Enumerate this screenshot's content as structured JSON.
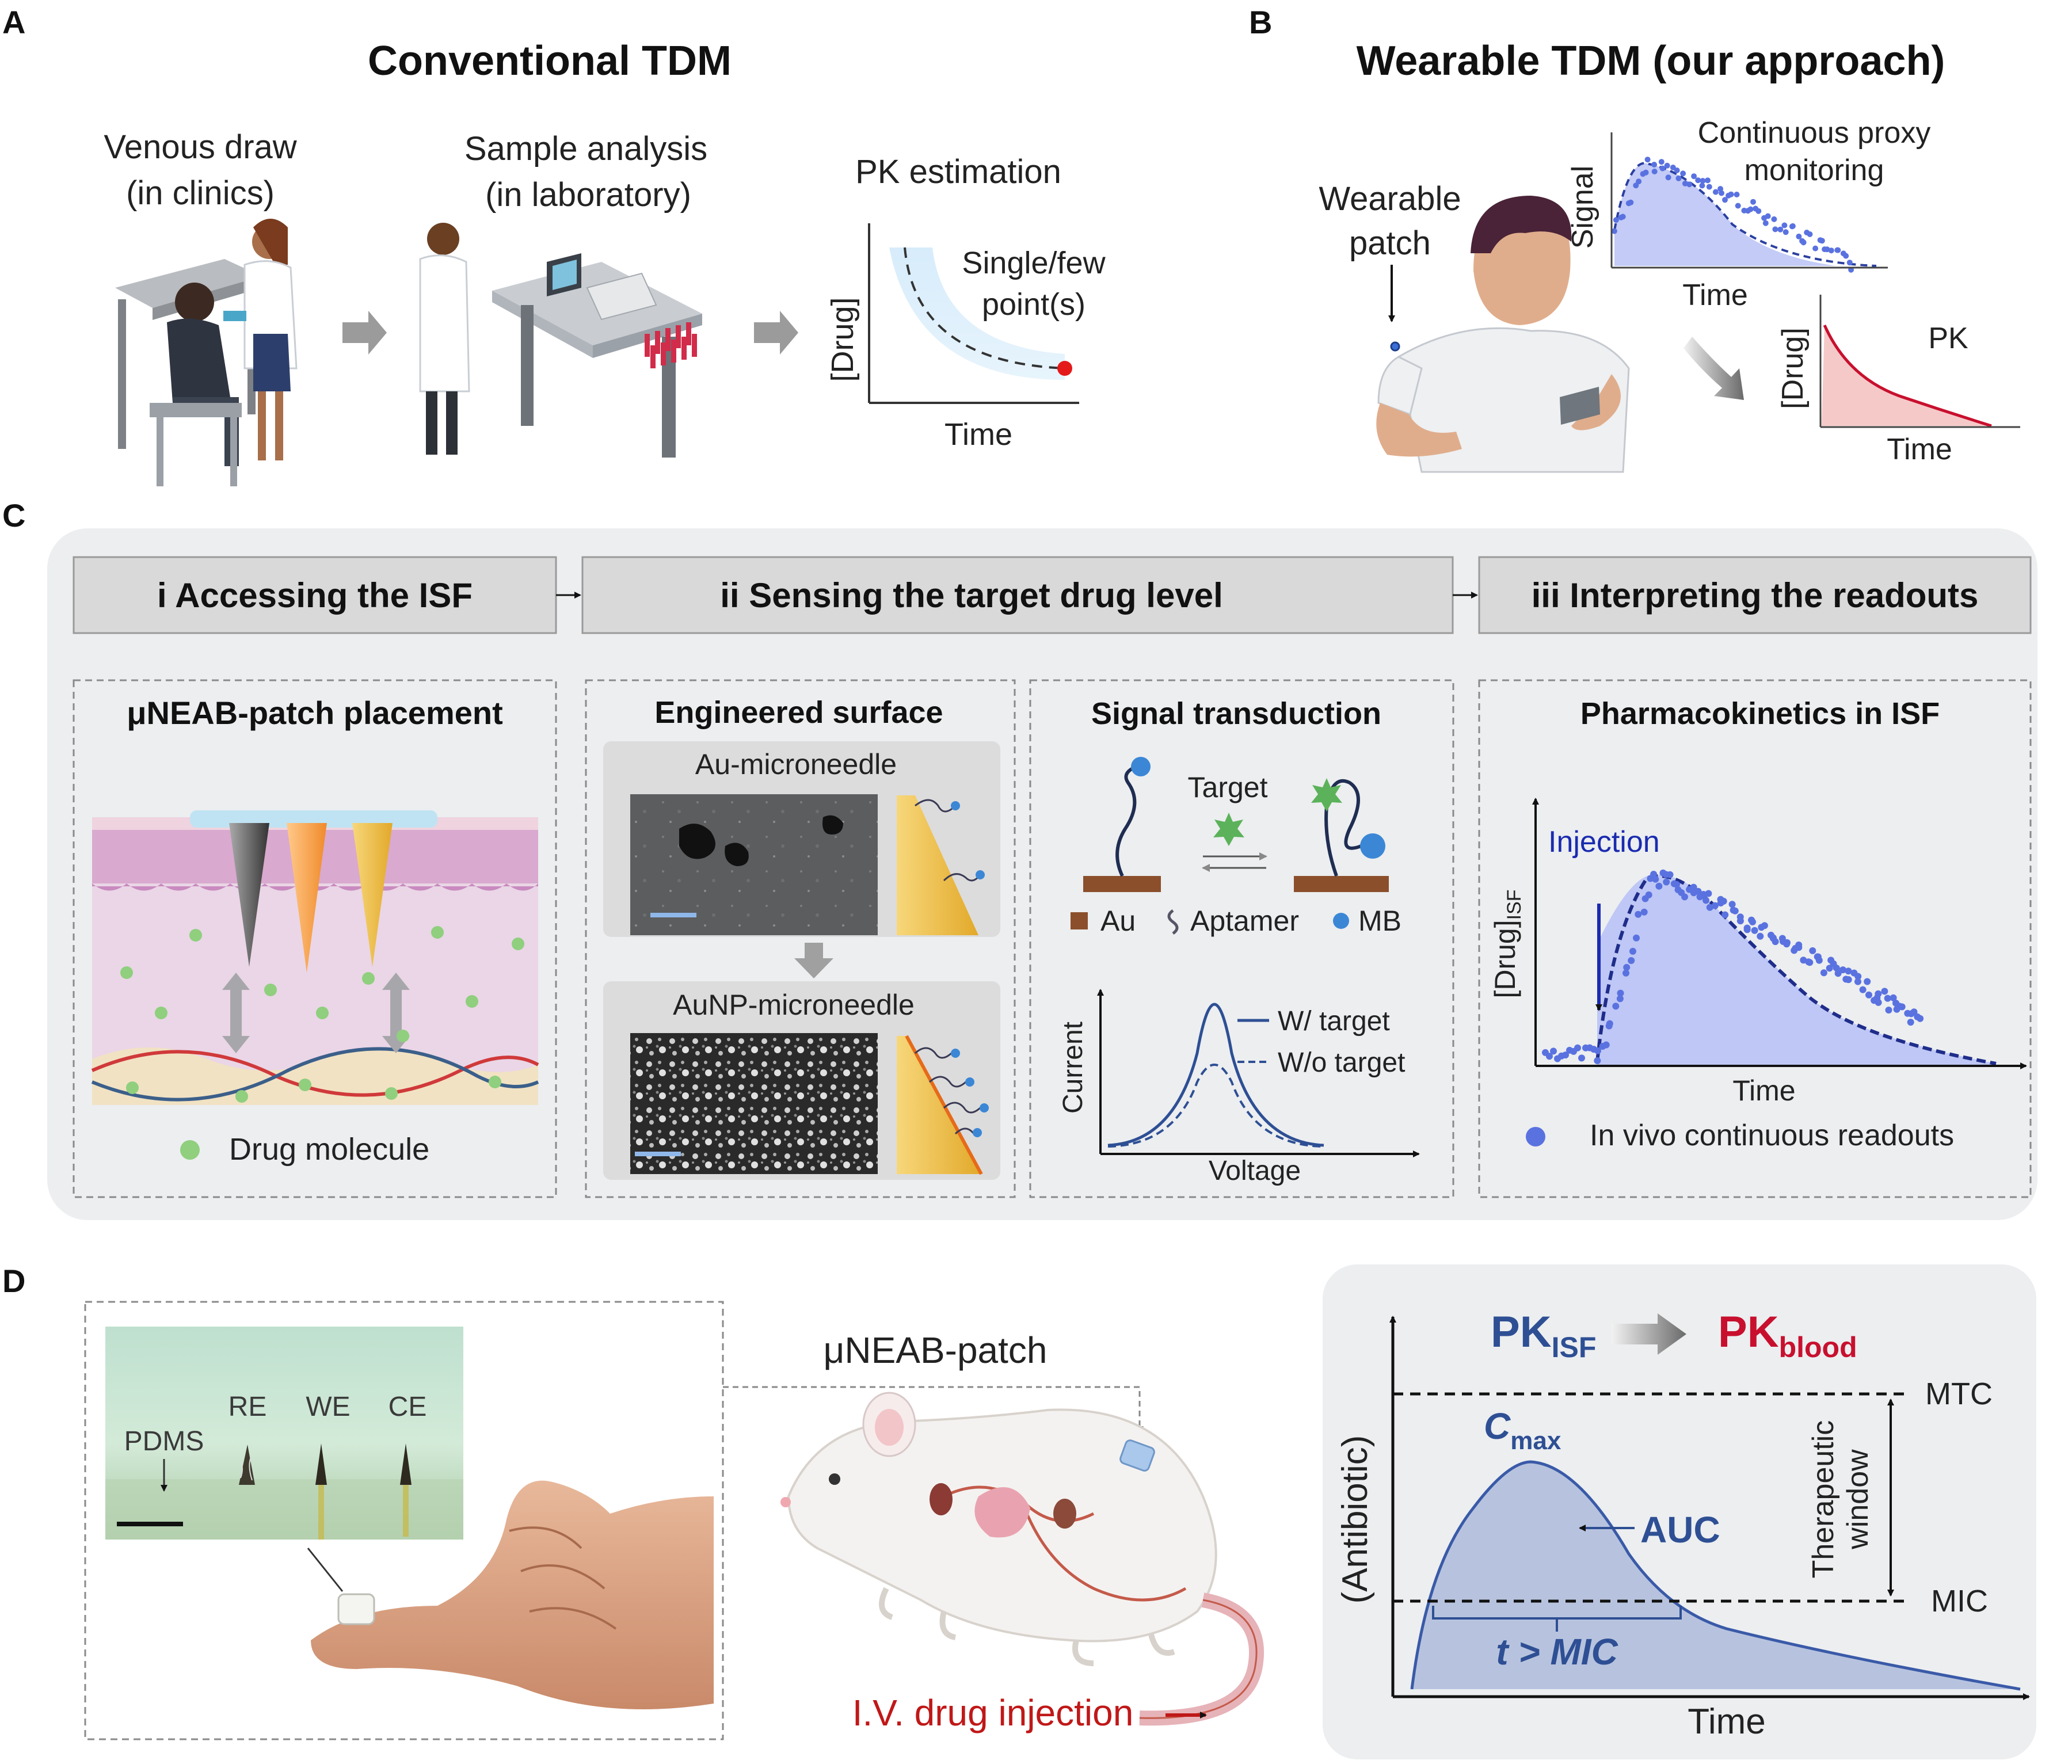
{
  "panel_letters": {
    "a": "A",
    "b": "B",
    "c": "C",
    "d": "D"
  },
  "panel_a": {
    "title": "Conventional TDM",
    "step1_line1": "Venous draw",
    "step1_line2": "(in clinics)",
    "step2_line1": "Sample analysis",
    "step2_line2": "(in laboratory)",
    "step3_title": "PK estimation",
    "annot_line1": "Single/few",
    "annot_line2": "point(s)",
    "ylabel": "[Drug]",
    "xlabel": "Time"
  },
  "panel_b": {
    "title": "Wearable TDM (our approach)",
    "patch_line1": "Wearable",
    "patch_line2": "patch",
    "monitor_line1": "Continuous proxy",
    "monitor_line2": "monitoring",
    "signal_ylabel": "Signal",
    "signal_xlabel": "Time",
    "pk_label": "PK",
    "pk_ylabel": "[Drug]",
    "pk_xlabel": "Time"
  },
  "panel_c": {
    "step_i_num": "i",
    "step_i": "Accessing the ISF",
    "step_ii_num": "ii",
    "step_ii": "Sensing the target drug level",
    "step_iii_num": "iii",
    "step_iii": "Interpreting the readouts",
    "placement_title": "μNEAB-patch placement",
    "drug_molecule": "Drug molecule",
    "surface_title": "Engineered surface",
    "au_mn": "Au-microneedle",
    "aunp_mn": "AuNP-microneedle",
    "transduction_title": "Signal transduction",
    "target": "Target",
    "au": "Au",
    "aptamer": "Aptamer",
    "mb": "MB",
    "current": "Current",
    "voltage": "Voltage",
    "w_target": "W/ target",
    "wo_target": "W/o target",
    "pk_isf_title": "Pharmacokinetics in ISF",
    "injection": "Injection",
    "pk_ylabel_main": "[Drug]",
    "pk_ylabel_sub": "ISF",
    "pk_xlabel": "Time",
    "readouts": "In vivo continuous readouts"
  },
  "panel_d": {
    "pdms": "PDMS",
    "re": "RE",
    "we": "WE",
    "ce": "CE",
    "patch_label": "μNEAB-patch",
    "iv_injection": "I.V. drug injection",
    "pk_isf_main": "PK",
    "pk_isf_sub": "ISF",
    "pk_blood_main": "PK",
    "pk_blood_sub": "blood",
    "ylabel": "(Antibiotic)",
    "xlabel": "Time",
    "mtc": "MTC",
    "mic": "MIC",
    "cmax_main": "C",
    "cmax_sub": "max",
    "auc": "AUC",
    "t_mic": "t > MIC",
    "window_line1": "Therapeutic",
    "window_line2": "window"
  },
  "colors": {
    "curve_blue": "#3a5aa8",
    "point_blue": "#5a72e0",
    "drug_red": "#d42020",
    "pk_blood_red": "#c8102e",
    "pk_isf_blue": "#2e4f94",
    "gray_panel": "#eceef0",
    "drug_green": "#8fcf7e"
  }
}
